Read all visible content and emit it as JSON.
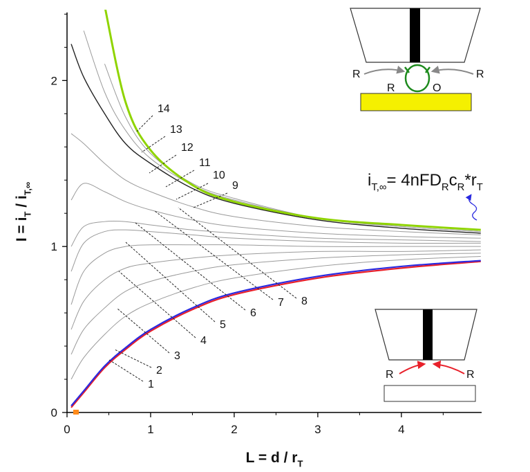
{
  "chart_data": {
    "type": "line",
    "x_label": [
      "L = d / r",
      "T"
    ],
    "y_label": [
      "I = i",
      "T",
      " / i",
      "T,∞"
    ],
    "formula": [
      "i",
      "T,∞",
      "= 4nFD",
      "R",
      "c",
      "R",
      "*r",
      "T"
    ],
    "top_diagram_labels": [
      "R",
      "R",
      "O",
      "R"
    ],
    "bottom_diagram_labels": [
      "R",
      "R"
    ],
    "x": [
      0.05,
      0.2,
      0.45,
      0.7,
      1,
      1.5,
      2,
      3,
      4,
      4.95
    ],
    "xlim": [
      0,
      4.96
    ],
    "ylim": [
      0,
      2.41
    ],
    "xticks": [
      0,
      1,
      2,
      3,
      4
    ],
    "yticks": [
      0,
      1,
      2
    ],
    "minor_xticks": [
      0.5,
      1.5,
      2.5,
      3.5,
      4.5
    ],
    "minor_yticks": [
      0.2,
      0.4,
      0.6,
      0.8,
      1.2,
      1.4,
      1.6,
      1.8,
      2.2,
      2.4
    ],
    "series": [
      {
        "name": "1",
        "color": "#e8202a",
        "linewidth": 2.2,
        "values": [
          0.03,
          0.12,
          0.27,
          0.38,
          0.49,
          0.62,
          0.71,
          0.81,
          0.87,
          0.91
        ]
      },
      {
        "name": "2",
        "color": "#2a2ae0",
        "linewidth": 2.2,
        "values": [
          0.04,
          0.13,
          0.28,
          0.39,
          0.5,
          0.63,
          0.72,
          0.82,
          0.88,
          0.915
        ]
      },
      {
        "name": "3",
        "color": "#9a9a9a",
        "linewidth": 1,
        "values": [
          0.2,
          0.33,
          0.47,
          0.58,
          0.66,
          0.75,
          0.81,
          0.88,
          0.92,
          0.94
        ]
      },
      {
        "name": "4",
        "color": "#9a9a9a",
        "linewidth": 1,
        "values": [
          0.35,
          0.5,
          0.63,
          0.73,
          0.79,
          0.85,
          0.89,
          0.93,
          0.95,
          0.96
        ]
      },
      {
        "name": "5",
        "color": "#9a9a9a",
        "linewidth": 1,
        "values": [
          0.5,
          0.67,
          0.8,
          0.87,
          0.9,
          0.93,
          0.95,
          0.97,
          0.97,
          0.98
        ]
      },
      {
        "name": "6",
        "color": "#9a9a9a",
        "linewidth": 1,
        "values": [
          0.65,
          0.85,
          0.96,
          1.0,
          1.01,
          1.01,
          1.01,
          1.0,
          1.0,
          1.0
        ]
      },
      {
        "name": "7",
        "color": "#9a9a9a",
        "linewidth": 1,
        "values": [
          0.85,
          1.02,
          1.09,
          1.1,
          1.09,
          1.07,
          1.05,
          1.03,
          1.02,
          1.02
        ]
      },
      {
        "name": "8",
        "color": "#9a9a9a",
        "linewidth": 1,
        "values": [
          1.0,
          1.12,
          1.15,
          1.15,
          1.13,
          1.1,
          1.08,
          1.05,
          1.04,
          1.03
        ]
      },
      {
        "name": "9",
        "color": "#9a9a9a",
        "linewidth": 1,
        "values": [
          1.28,
          1.38,
          1.33,
          1.27,
          1.22,
          1.16,
          1.12,
          1.08,
          1.06,
          1.05
        ]
      },
      {
        "name": "10",
        "color": "#9a9a9a",
        "linewidth": 1,
        "values": [
          1.68,
          1.62,
          1.5,
          1.4,
          1.33,
          1.24,
          1.18,
          1.12,
          1.09,
          1.07
        ]
      },
      {
        "name": "11",
        "color": "#222222",
        "linewidth": 1.4,
        "values": [
          2.22,
          2.02,
          1.8,
          1.62,
          1.5,
          1.35,
          1.26,
          1.16,
          1.11,
          1.08
        ]
      },
      {
        "name": "12",
        "color": "#9a9a9a",
        "linewidth": 1,
        "values": [
          null,
          2.3,
          1.93,
          1.7,
          1.53,
          1.37,
          1.28,
          1.17,
          1.12,
          1.09
        ]
      },
      {
        "name": "13",
        "color": "#9a9a9a",
        "linewidth": 1,
        "values": [
          null,
          null,
          2.1,
          1.78,
          1.56,
          1.38,
          1.29,
          1.17,
          1.12,
          1.09
        ]
      },
      {
        "name": "14",
        "color": "#8fd400",
        "linewidth": 3,
        "values": [
          null,
          null,
          2.45,
          1.87,
          1.58,
          1.37,
          1.27,
          1.17,
          1.13,
          1.1
        ]
      }
    ]
  }
}
